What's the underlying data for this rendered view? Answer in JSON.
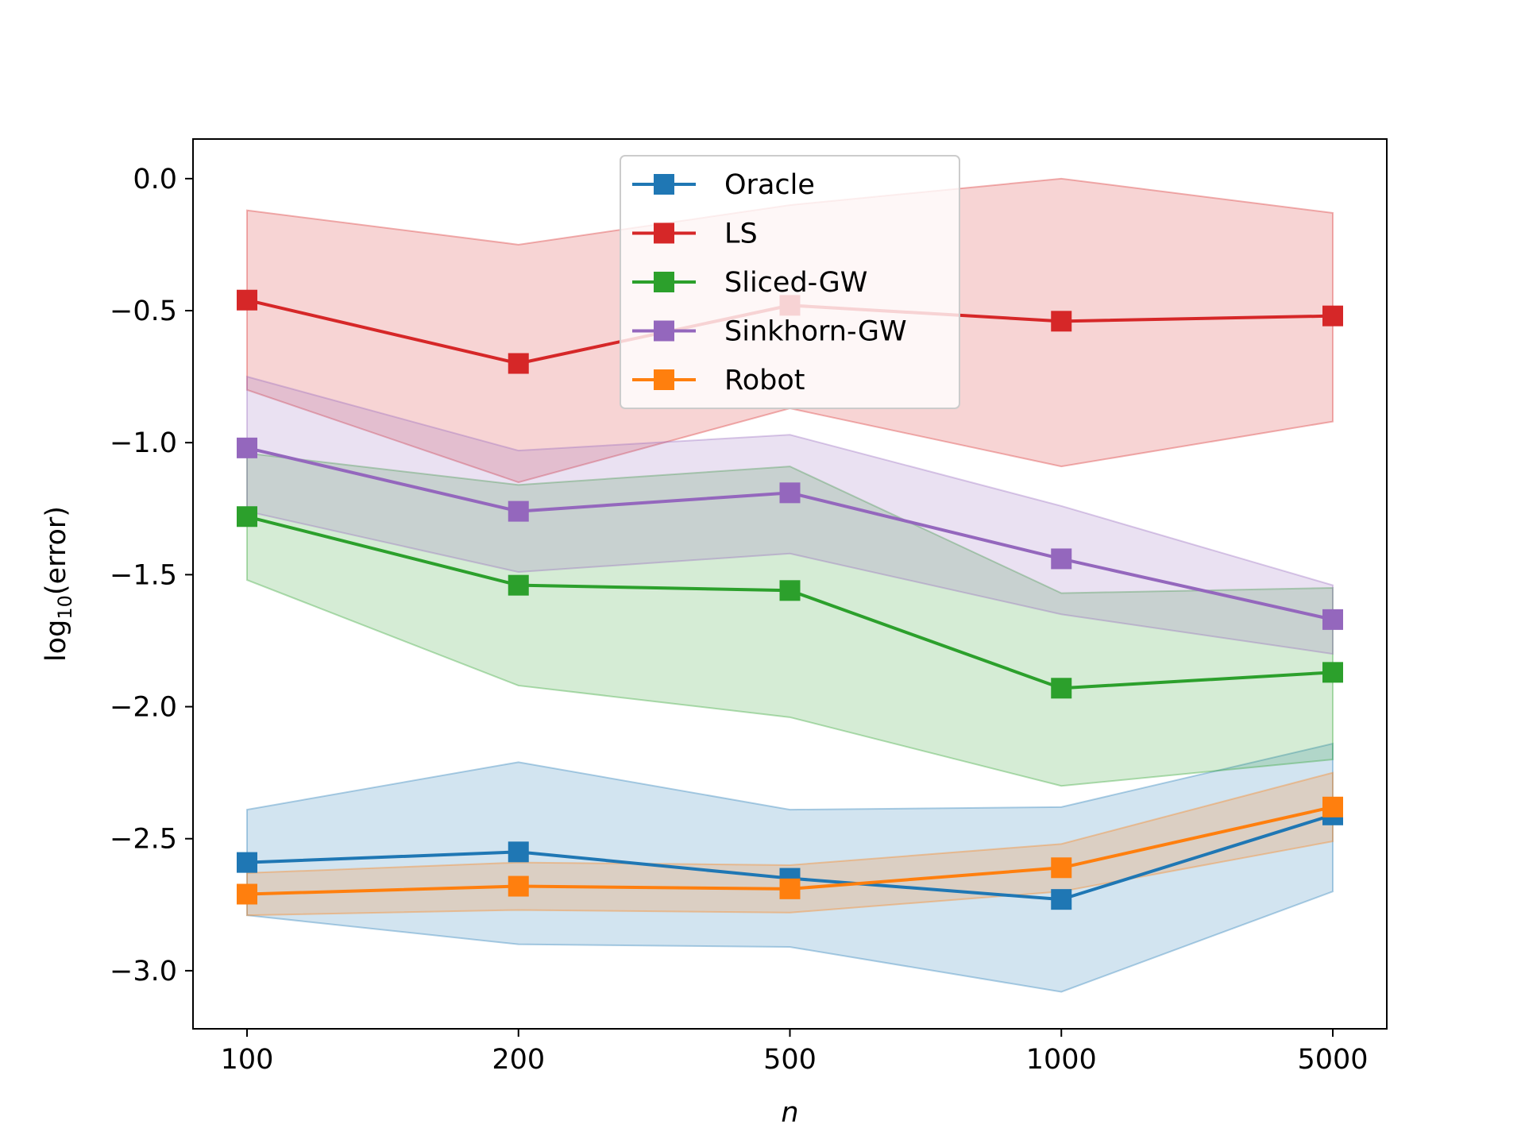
{
  "chart_data": {
    "type": "line",
    "title": "",
    "xlabel": "n",
    "ylabel": {
      "base": "log",
      "subscript": "10",
      "rest": "(error)"
    },
    "categories": [
      "100",
      "200",
      "500",
      "1000",
      "5000"
    ],
    "ylim": [
      -3.22,
      0.15
    ],
    "yticks": [
      0.0,
      -0.5,
      -1.0,
      -1.5,
      -2.0,
      -2.5,
      -3.0
    ],
    "ytick_labels": [
      "0.0",
      "−0.5",
      "−1.0",
      "−1.5",
      "−2.0",
      "−2.5",
      "−3.0"
    ],
    "grid": false,
    "legend_position": "top-center",
    "series": [
      {
        "name": "Oracle",
        "color": "#1f77b4",
        "values": [
          -2.59,
          -2.55,
          -2.65,
          -2.73,
          -2.41
        ],
        "lower": [
          -2.79,
          -2.9,
          -2.91,
          -3.08,
          -2.7
        ],
        "upper": [
          -2.39,
          -2.21,
          -2.39,
          -2.38,
          -2.14
        ]
      },
      {
        "name": "LS",
        "color": "#d62728",
        "values": [
          -0.46,
          -0.7,
          -0.48,
          -0.54,
          -0.52
        ],
        "lower": [
          -0.8,
          -1.15,
          -0.87,
          -1.09,
          -0.92
        ],
        "upper": [
          -0.12,
          -0.25,
          -0.1,
          0.0,
          -0.13
        ]
      },
      {
        "name": "Sliced-GW",
        "color": "#2ca02c",
        "values": [
          -1.28,
          -1.54,
          -1.56,
          -1.93,
          -1.87
        ],
        "lower": [
          -1.52,
          -1.92,
          -2.04,
          -2.3,
          -2.2
        ],
        "upper": [
          -1.04,
          -1.16,
          -1.09,
          -1.57,
          -1.55
        ]
      },
      {
        "name": "Sinkhorn-GW",
        "color": "#9467bd",
        "values": [
          -1.02,
          -1.26,
          -1.19,
          -1.44,
          -1.67
        ],
        "lower": [
          -1.26,
          -1.49,
          -1.42,
          -1.65,
          -1.8
        ],
        "upper": [
          -0.75,
          -1.03,
          -0.97,
          -1.24,
          -1.54
        ]
      },
      {
        "name": "Robot",
        "color": "#ff7f0e",
        "values": [
          -2.71,
          -2.68,
          -2.69,
          -2.61,
          -2.38
        ],
        "lower": [
          -2.79,
          -2.77,
          -2.78,
          -2.7,
          -2.51
        ],
        "upper": [
          -2.63,
          -2.59,
          -2.6,
          -2.52,
          -2.25
        ]
      }
    ]
  }
}
